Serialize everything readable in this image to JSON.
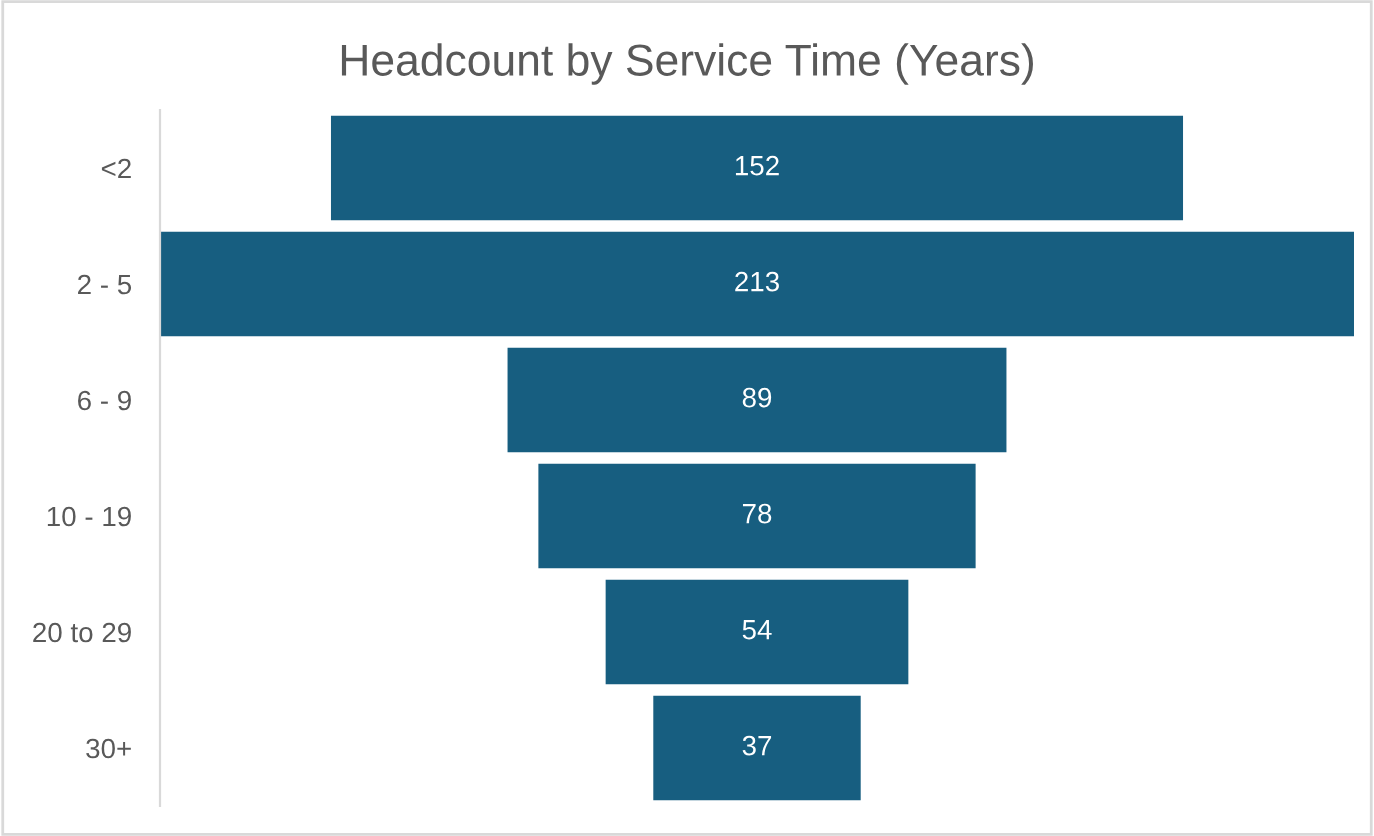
{
  "chart_data": {
    "type": "other",
    "title": "Headcount by Service Time (Years)",
    "categories": [
      "<2",
      "2 - 5",
      "6 - 9",
      "10 - 19",
      "20 to 29",
      "30+"
    ],
    "values": [
      152,
      213,
      89,
      78,
      54,
      37
    ],
    "color": "#175e80",
    "data_labels": true
  }
}
